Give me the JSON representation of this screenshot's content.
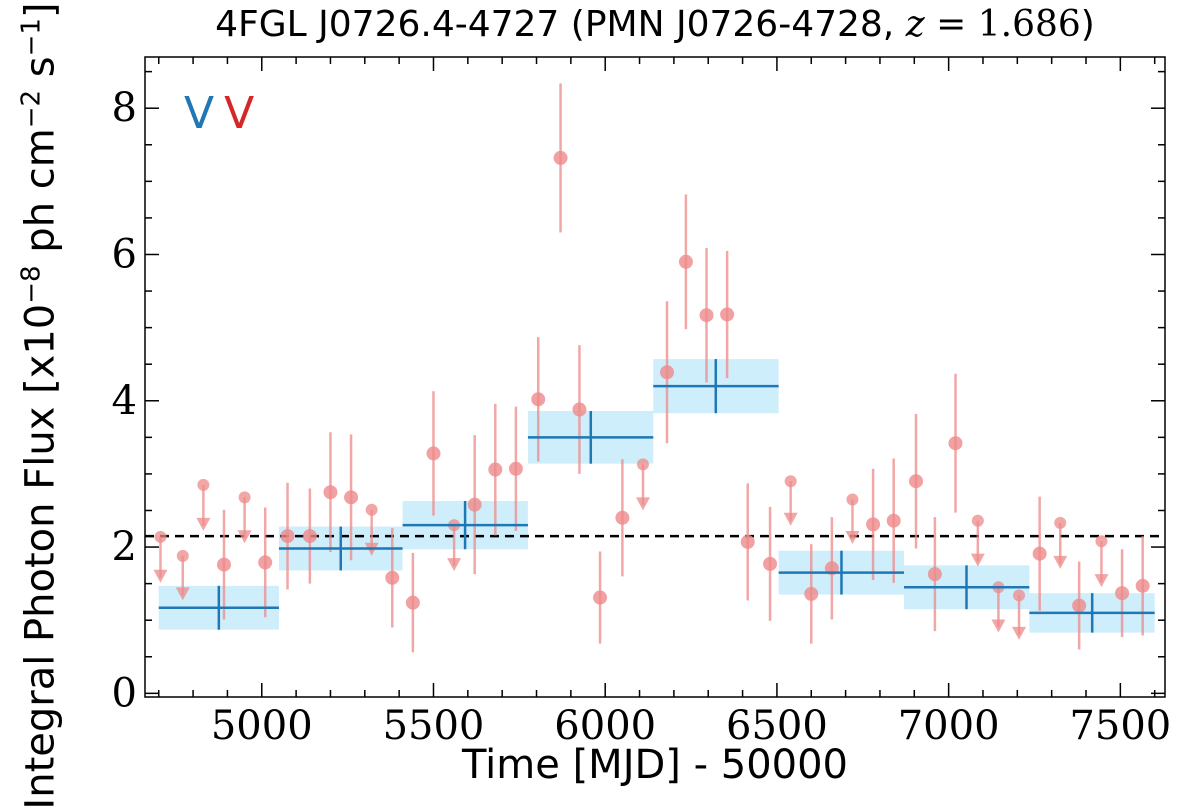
{
  "chart_data": {
    "type": "scatter",
    "title": "4FGL J0726.4-4727 (PMN J0726-4728, z = 1.686)",
    "title_parts": {
      "prefix": "4FGL J0726.4-4727 (PMN J0726-4728, ",
      "zvar": "z",
      "equals": " = 1.686",
      "suffix": ")"
    },
    "xlabel": "Time [MJD] - 50000",
    "ylabel": "Integral Photon Flux [x10",
    "ylabel_exp": "−8",
    "ylabel_units": " ph cm",
    "ylabel_exp2": "−2",
    "ylabel_s": " s",
    "ylabel_exp3": "−1",
    "ylabel_end": "]",
    "xlim": [
      4660,
      7630
    ],
    "ylim": [
      -0.05,
      8.7
    ],
    "xticks": [
      5000,
      5500,
      6000,
      6500,
      7000,
      7500
    ],
    "yticks": [
      0,
      2,
      4,
      6,
      8
    ],
    "legend_markers": [
      {
        "symbol": "V",
        "color": "#1f77b4"
      },
      {
        "symbol": "V",
        "color": "#d62728"
      }
    ],
    "mean_flux": 2.15,
    "colors": {
      "fine_points": "#ee8a8a",
      "coarse_bins": "#1f77b4",
      "coarse_band": "#cfeefc",
      "mean_line": "#000000"
    },
    "coarse_bins": [
      {
        "x0": 4700,
        "x1": 5050,
        "xc": 4875,
        "y": 1.17,
        "err": 0.3
      },
      {
        "x0": 5050,
        "x1": 5410,
        "xc": 5230,
        "y": 1.98,
        "err": 0.3
      },
      {
        "x0": 5410,
        "x1": 5775,
        "xc": 5592,
        "y": 2.3,
        "err": 0.33
      },
      {
        "x0": 5775,
        "x1": 6140,
        "xc": 5958,
        "y": 3.5,
        "err": 0.36
      },
      {
        "x0": 6140,
        "x1": 6505,
        "xc": 6322,
        "y": 4.2,
        "err": 0.37
      },
      {
        "x0": 6505,
        "x1": 6870,
        "xc": 6688,
        "y": 1.65,
        "err": 0.3
      },
      {
        "x0": 6870,
        "x1": 7235,
        "xc": 7052,
        "y": 1.45,
        "err": 0.3
      },
      {
        "x0": 7235,
        "x1": 7600,
        "xc": 7418,
        "y": 1.1,
        "err": 0.27
      }
    ],
    "detections": [
      {
        "x": 4890,
        "y": 1.76,
        "err": 0.75
      },
      {
        "x": 5010,
        "y": 1.79,
        "err": 0.75
      },
      {
        "x": 5075,
        "y": 2.15,
        "err": 0.73
      },
      {
        "x": 5140,
        "y": 2.15,
        "err": 0.65
      },
      {
        "x": 5200,
        "y": 2.75,
        "err": 0.82
      },
      {
        "x": 5260,
        "y": 2.68,
        "err": 0.86
      },
      {
        "x": 5380,
        "y": 1.58,
        "err": 0.68
      },
      {
        "x": 5440,
        "y": 1.24,
        "err": 0.68
      },
      {
        "x": 5500,
        "y": 3.28,
        "err": 0.85
      },
      {
        "x": 5620,
        "y": 2.58,
        "err": 0.95
      },
      {
        "x": 5680,
        "y": 3.06,
        "err": 0.9
      },
      {
        "x": 5740,
        "y": 3.07,
        "err": 0.85
      },
      {
        "x": 5805,
        "y": 4.02,
        "err": 0.85
      },
      {
        "x": 5870,
        "y": 7.32,
        "err": 1.02
      },
      {
        "x": 5925,
        "y": 3.88,
        "err": 0.88
      },
      {
        "x": 5985,
        "y": 1.31,
        "err": 0.63
      },
      {
        "x": 6050,
        "y": 2.4,
        "err": 0.8
      },
      {
        "x": 6180,
        "y": 4.39,
        "err": 0.97
      },
      {
        "x": 6235,
        "y": 5.9,
        "err": 0.92
      },
      {
        "x": 6295,
        "y": 5.17,
        "err": 0.92
      },
      {
        "x": 6355,
        "y": 5.18,
        "err": 0.87
      },
      {
        "x": 6415,
        "y": 2.07,
        "err": 0.8
      },
      {
        "x": 6480,
        "y": 1.77,
        "err": 0.78
      },
      {
        "x": 6600,
        "y": 1.36,
        "err": 0.68
      },
      {
        "x": 6660,
        "y": 1.71,
        "err": 0.7
      },
      {
        "x": 6780,
        "y": 2.31,
        "err": 0.76
      },
      {
        "x": 6840,
        "y": 2.36,
        "err": 0.85
      },
      {
        "x": 6905,
        "y": 2.9,
        "err": 0.92
      },
      {
        "x": 6960,
        "y": 1.63,
        "err": 0.78
      },
      {
        "x": 7020,
        "y": 3.42,
        "err": 0.95
      },
      {
        "x": 7265,
        "y": 1.91,
        "err": 0.78
      },
      {
        "x": 7380,
        "y": 1.2,
        "err": 0.6
      },
      {
        "x": 7505,
        "y": 1.37,
        "err": 0.6
      },
      {
        "x": 7565,
        "y": 1.47,
        "err": 0.68
      }
    ],
    "upper_limits": [
      {
        "x": 4705,
        "y": 2.14,
        "arrow_y": 1.58
      },
      {
        "x": 4770,
        "y": 1.88,
        "arrow_y": 1.34
      },
      {
        "x": 4830,
        "y": 2.85,
        "arrow_y": 2.29
      },
      {
        "x": 4950,
        "y": 2.68,
        "arrow_y": 2.12
      },
      {
        "x": 5320,
        "y": 2.51,
        "arrow_y": 1.95
      },
      {
        "x": 5560,
        "y": 2.3,
        "arrow_y": 1.74
      },
      {
        "x": 6110,
        "y": 3.13,
        "arrow_y": 2.57
      },
      {
        "x": 6540,
        "y": 2.9,
        "arrow_y": 2.36
      },
      {
        "x": 6720,
        "y": 2.65,
        "arrow_y": 2.11
      },
      {
        "x": 7085,
        "y": 2.36,
        "arrow_y": 1.8
      },
      {
        "x": 7145,
        "y": 1.45,
        "arrow_y": 0.9
      },
      {
        "x": 7205,
        "y": 1.34,
        "arrow_y": 0.8
      },
      {
        "x": 7325,
        "y": 2.33,
        "arrow_y": 1.77
      },
      {
        "x": 7445,
        "y": 2.08,
        "arrow_y": 1.52
      }
    ]
  }
}
